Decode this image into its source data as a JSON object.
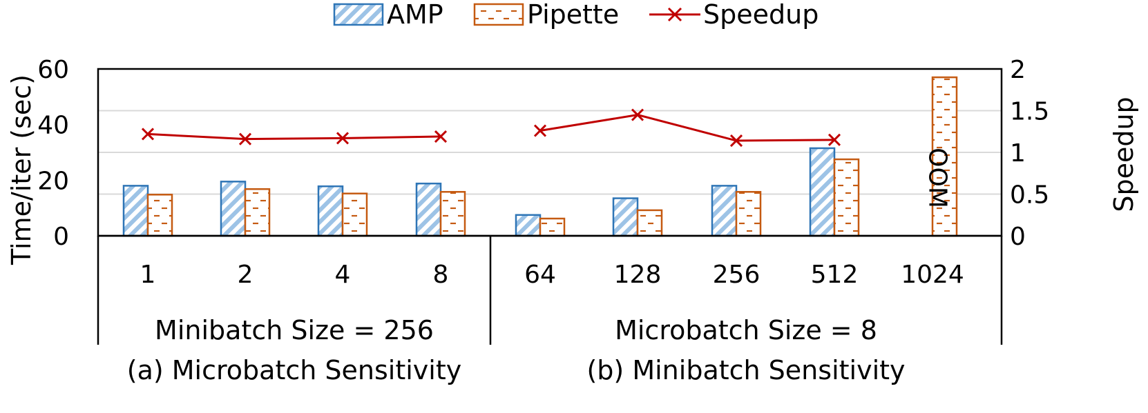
{
  "chart_data": {
    "type": "bar",
    "legend": {
      "placement": "top-center",
      "entries": [
        "AMP",
        "Pipette",
        "Speedup"
      ]
    },
    "categories": [
      "1",
      "2",
      "4",
      "8",
      "64",
      "128",
      "256",
      "512",
      "1024"
    ],
    "groups": [
      {
        "label": "Minibatch Size = 256",
        "caption": "(a) Microbatch Sensitivity",
        "categories": [
          "1",
          "2",
          "4",
          "8"
        ]
      },
      {
        "label": "Microbatch Size = 8",
        "caption": "(b) Minibatch Sensitivity",
        "categories": [
          "64",
          "128",
          "256",
          "512",
          "1024"
        ]
      }
    ],
    "series": [
      {
        "name": "AMP",
        "type": "bar",
        "axis": "left",
        "color": "#2E75B6",
        "fill": "#BDD7EE",
        "values": [
          18,
          19.5,
          17.8,
          18.8,
          7.5,
          13.5,
          18,
          31.5,
          null
        ]
      },
      {
        "name": "Pipette",
        "type": "bar",
        "axis": "left",
        "color": "#C55A11",
        "fill": "#FFFFFF",
        "values": [
          14.8,
          16.8,
          15.2,
          15.8,
          6.2,
          9.2,
          15.8,
          27.5,
          57
        ]
      },
      {
        "name": "Speedup",
        "type": "line",
        "axis": "right",
        "color": "#C00000",
        "marker": "x",
        "values": [
          1.22,
          1.16,
          1.17,
          1.19,
          1.26,
          1.45,
          1.14,
          1.15,
          null
        ]
      }
    ],
    "annotations": [
      {
        "text": "OOM",
        "category": "1024",
        "series": "AMP"
      }
    ],
    "ylabel": "Time/iter (sec)",
    "y2label": "Speedup",
    "ylim": [
      0,
      60
    ],
    "y2lim": [
      0,
      2
    ],
    "yticks": [
      "0",
      "20",
      "40",
      "60"
    ],
    "y2ticks": [
      "0",
      "0.5",
      "1",
      "1.5",
      "2"
    ],
    "grid": true
  }
}
